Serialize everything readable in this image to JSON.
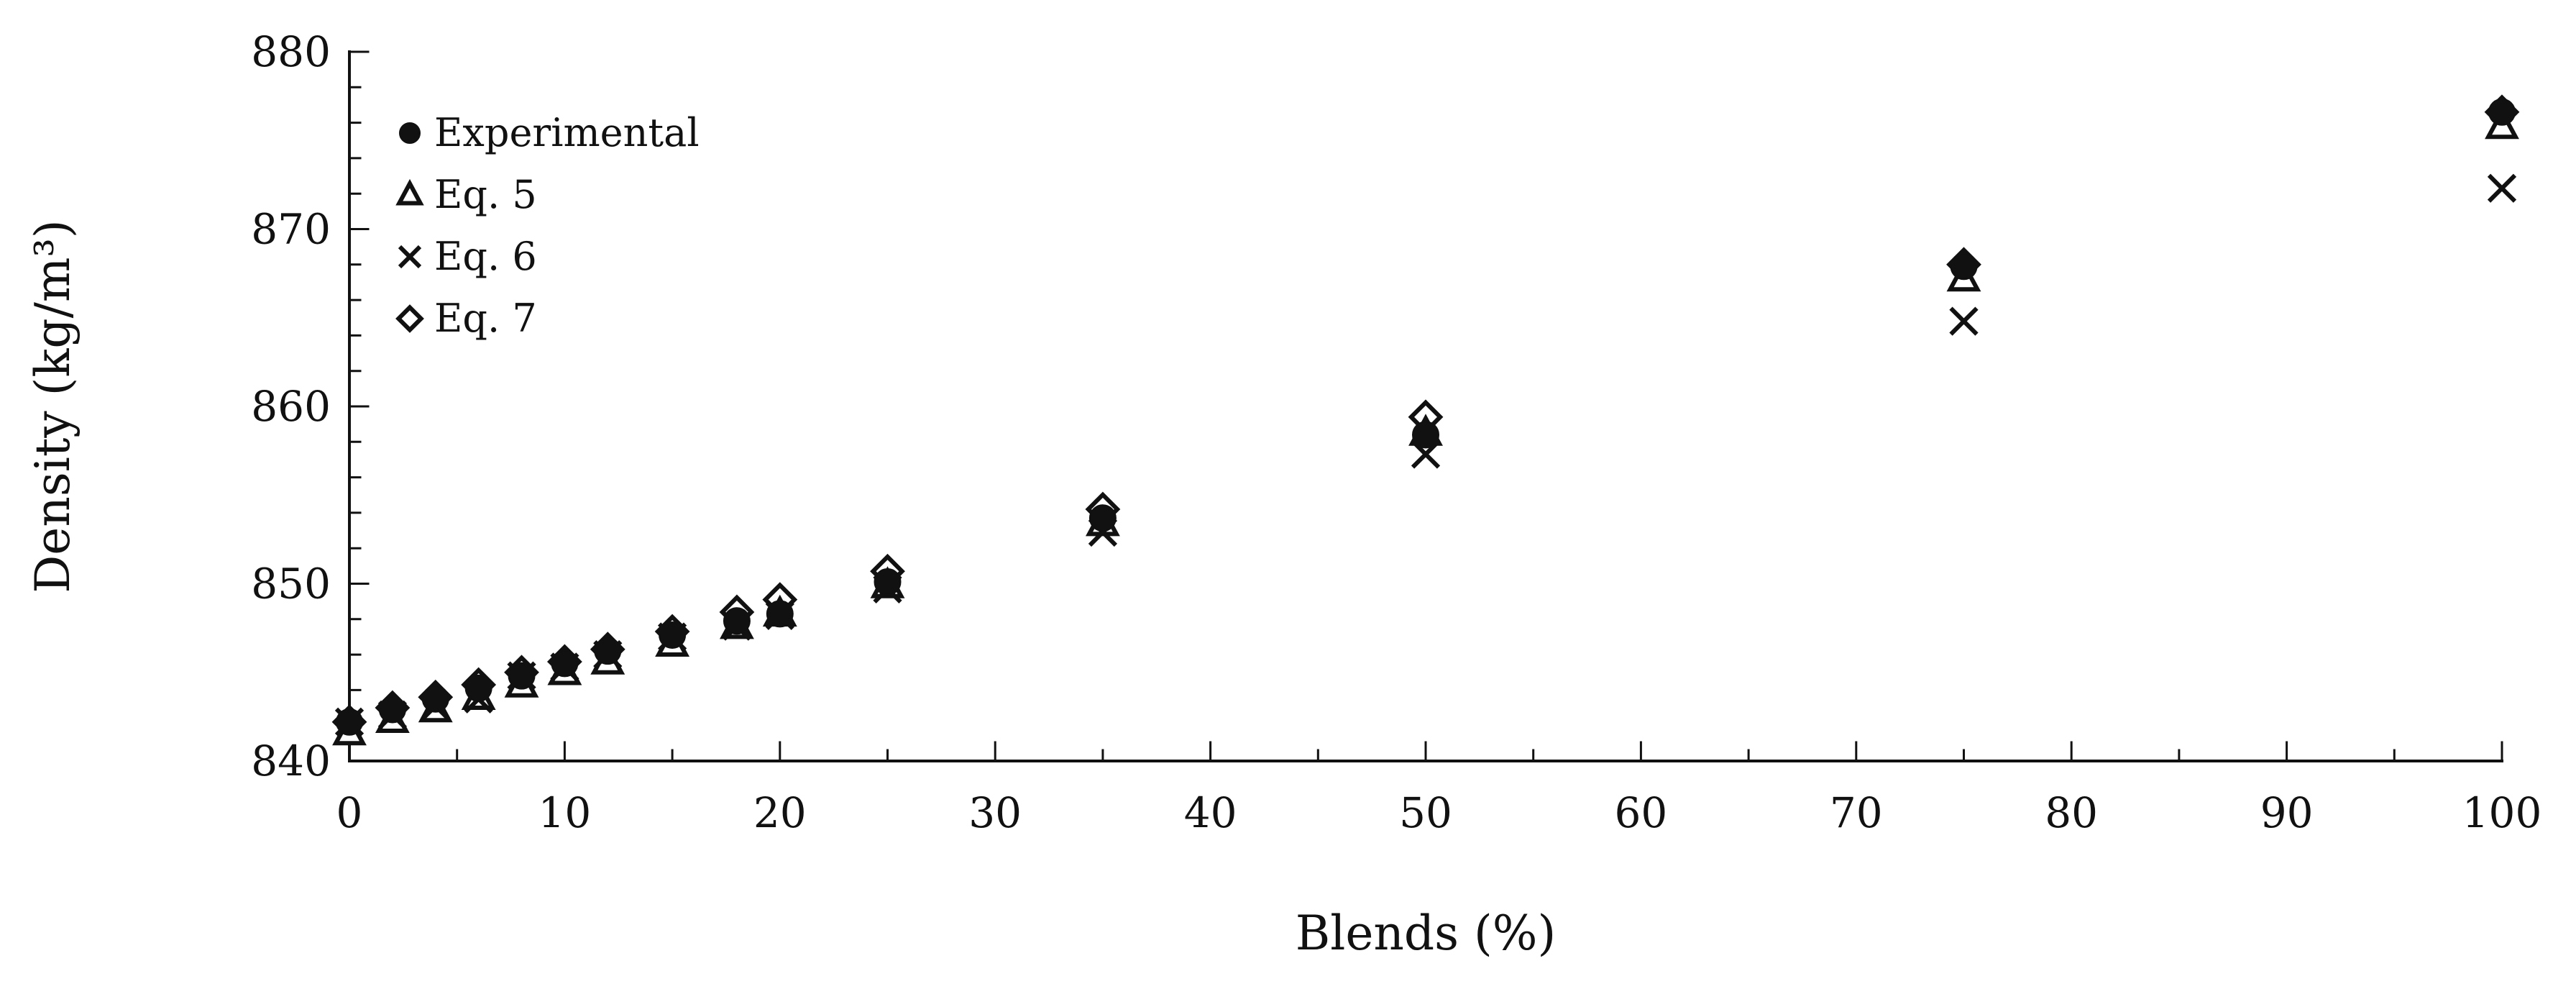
{
  "chart_data": {
    "type": "scatter",
    "title": "",
    "xlabel": "Blends (%)",
    "ylabel": "Density (kg/m³)",
    "xlim": [
      0,
      100
    ],
    "ylim": [
      840,
      880
    ],
    "xticks": [
      0,
      10,
      20,
      30,
      40,
      50,
      60,
      70,
      80,
      90,
      100
    ],
    "yticks": [
      840,
      850,
      860,
      870,
      880
    ],
    "grid": false,
    "legend": {
      "position": "top-left",
      "entries": [
        "Experimental",
        "Eq. 5",
        "Eq. 6",
        "Eq. 7"
      ]
    },
    "x": [
      0,
      2,
      4,
      6,
      8,
      10,
      12,
      15,
      18,
      20,
      25,
      35,
      50,
      75,
      100
    ],
    "series": [
      {
        "name": "Experimental",
        "marker": "filled-circle",
        "values": [
          842.2,
          842.9,
          843.5,
          844.1,
          844.8,
          845.5,
          846.2,
          847.1,
          847.9,
          848.3,
          850.1,
          853.7,
          858.4,
          867.9,
          876.6
        ]
      },
      {
        "name": "Eq. 5",
        "marker": "open-triangle",
        "values": [
          841.6,
          842.3,
          842.9,
          843.6,
          844.3,
          845.0,
          845.6,
          846.6,
          847.6,
          848.3,
          849.9,
          853.4,
          858.5,
          867.2,
          875.8
        ]
      },
      {
        "name": "Eq. 6",
        "marker": "x",
        "values": [
          842.2,
          842.6,
          843.1,
          843.5,
          844.8,
          845.3,
          846.0,
          847.0,
          847.6,
          848.2,
          849.7,
          852.9,
          857.3,
          864.8,
          872.3
        ]
      },
      {
        "name": "Eq. 7",
        "marker": "open-diamond",
        "values": [
          842.2,
          843.0,
          843.6,
          844.3,
          845.0,
          845.6,
          846.3,
          847.3,
          848.4,
          849.1,
          850.7,
          854.2,
          859.4,
          868.0,
          876.6
        ]
      }
    ]
  }
}
